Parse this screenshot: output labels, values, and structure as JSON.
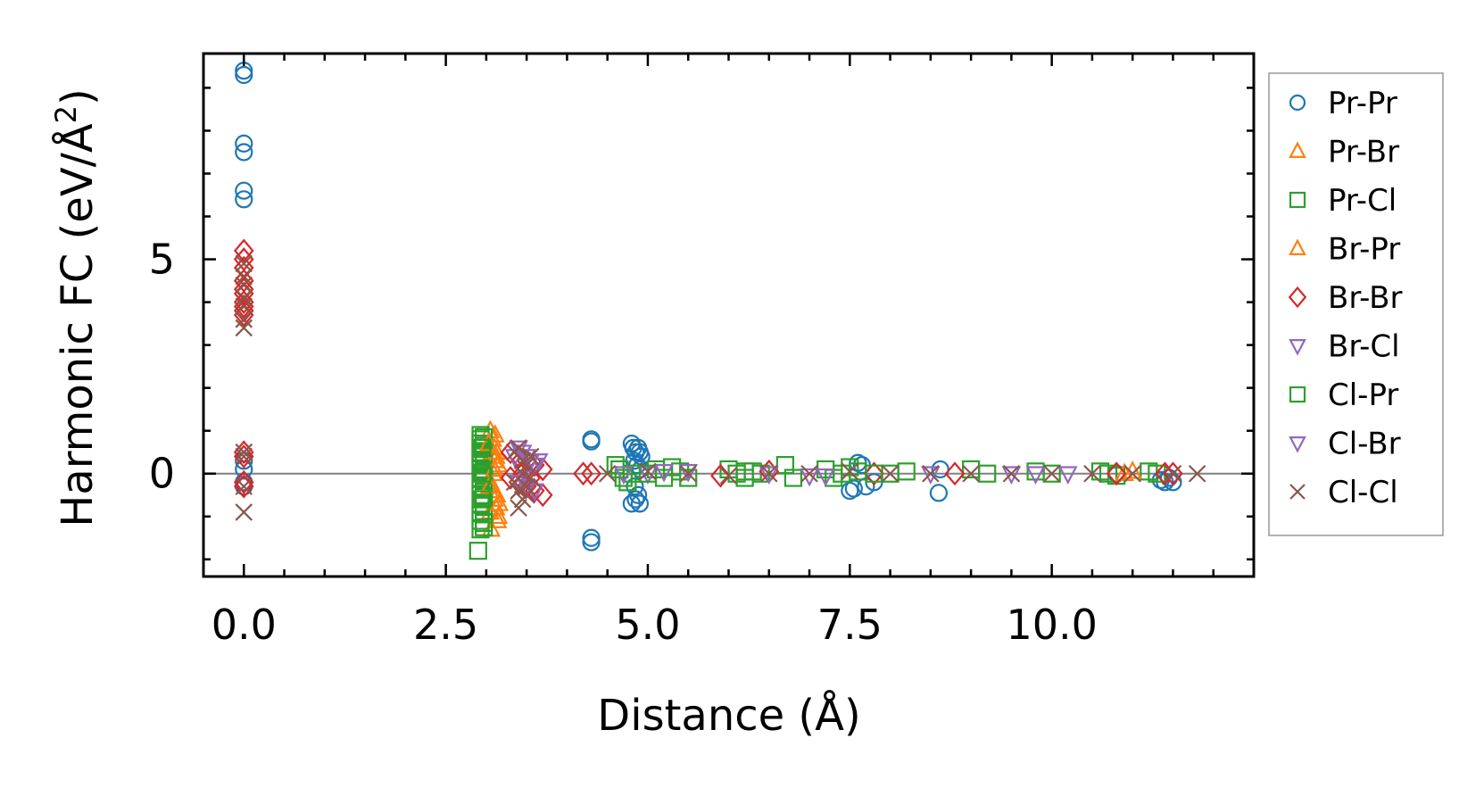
{
  "chart_data": {
    "type": "scatter",
    "xlabel": "Distance (Å)",
    "ylabel_main": "Harmonic FC (eV/Å",
    "ylabel_sup": "2",
    "ylabel_close": ")",
    "xlim": [
      -0.5,
      12.5
    ],
    "ylim": [
      -2.4,
      9.8
    ],
    "xticks": [
      0.0,
      2.5,
      5.0,
      7.5,
      10.0
    ],
    "xtick_labels": [
      "0.0",
      "2.5",
      "5.0",
      "7.5",
      "10.0"
    ],
    "yticks": [
      0,
      5
    ],
    "ytick_labels": [
      "0",
      "5"
    ],
    "x_minor_step": 0.5,
    "y_minor_step": 1,
    "zero_line": true,
    "grid": false,
    "legend_position": "outside-right",
    "series": [
      {
        "name": "Pr-Pr",
        "marker": "circle",
        "color": "#1f77b4",
        "x": [
          0,
          0,
          0,
          0,
          0,
          0,
          0,
          0,
          0,
          0,
          4.3,
          4.3,
          4.3,
          4.3,
          4.8,
          4.82,
          4.85,
          4.88,
          4.9,
          4.92,
          4.8,
          4.85,
          4.9,
          4.88,
          4.83,
          4.87,
          4.91,
          4.84,
          7.5,
          7.55,
          7.6,
          7.65,
          7.7,
          7.8,
          8.6,
          8.62,
          11.35,
          11.4,
          11.45,
          11.5,
          10.8
        ],
        "y": [
          9.4,
          9.3,
          7.7,
          7.5,
          6.6,
          6.4,
          0.3,
          0.1,
          -0.2,
          -0.3,
          0.8,
          0.75,
          -1.5,
          -1.6,
          0.7,
          0.6,
          0.5,
          0.6,
          0.5,
          0.4,
          -0.7,
          -0.6,
          -0.7,
          -0.5,
          0.3,
          0.2,
          0.1,
          -0.3,
          -0.4,
          -0.35,
          0.25,
          0.2,
          -0.3,
          -0.2,
          -0.45,
          0.1,
          -0.15,
          -0.2,
          -0.1,
          -0.2,
          0.0
        ]
      },
      {
        "name": "Pr-Br",
        "marker": "triangle",
        "color": "#ff7f0e",
        "x": [
          3.05,
          3.08,
          3.1,
          3.12,
          3.15,
          3.05,
          3.08,
          3.1,
          3.12,
          3.15,
          3.06,
          3.11,
          3.14,
          3.07,
          3.09,
          3.13,
          3.05,
          3.1
        ],
        "y": [
          1.0,
          0.8,
          0.6,
          0.4,
          0.2,
          -0.2,
          -0.4,
          -0.6,
          -0.8,
          -1.0,
          -1.3,
          0.9,
          -1.1,
          0.5,
          0.0,
          -0.5,
          -0.9,
          0.3
        ]
      },
      {
        "name": "Pr-Cl",
        "marker": "square",
        "color": "#2ca02c",
        "x": [
          2.93,
          2.93,
          2.93,
          2.93,
          2.93,
          2.93,
          2.93,
          2.93,
          2.93,
          2.93,
          2.93,
          2.93,
          2.93,
          2.93,
          2.93,
          2.93,
          2.97,
          2.97,
          2.97,
          2.97,
          2.97,
          2.97,
          2.97,
          2.97,
          2.97,
          2.97,
          2.97,
          2.97,
          2.97,
          2.97,
          2.9,
          4.6,
          4.65,
          4.7,
          4.75,
          4.8,
          5.1,
          5.2,
          5.3,
          5.4,
          5.5,
          6.0,
          6.1,
          6.2,
          6.3,
          6.4,
          6.7,
          6.8,
          7.2,
          7.3,
          7.4,
          7.5,
          7.6,
          8.0,
          8.2,
          9.0,
          9.2,
          9.8,
          10.0,
          10.6,
          10.7,
          10.8,
          11.2,
          11.3
        ],
        "y": [
          0.9,
          0.8,
          0.7,
          0.6,
          0.5,
          0.4,
          0.3,
          0.2,
          0.1,
          -0.1,
          -0.3,
          -0.5,
          -0.7,
          -0.9,
          -1.1,
          -1.3,
          0.85,
          0.65,
          0.45,
          0.25,
          0.05,
          -0.15,
          -0.35,
          -0.55,
          -0.75,
          -0.95,
          -1.15,
          -1.25,
          0.0,
          -0.05,
          -1.8,
          0.2,
          0.1,
          -0.1,
          -0.2,
          0.0,
          0.1,
          -0.1,
          0.15,
          0.05,
          -0.1,
          0.1,
          0.0,
          -0.1,
          0.05,
          0.0,
          0.2,
          -0.1,
          0.1,
          -0.1,
          0.0,
          0.15,
          0.05,
          0.0,
          0.05,
          0.1,
          0.0,
          0.05,
          0.0,
          0.05,
          0.0,
          -0.05,
          0.05,
          0.0
        ]
      },
      {
        "name": "Br-Pr",
        "marker": "triangle",
        "color": "#ff7f0e",
        "x": [
          3.03,
          3.1,
          3.16,
          3.04,
          3.13,
          10.9,
          11.0
        ],
        "y": [
          0.7,
          0.1,
          -0.7,
          -0.3,
          0.5,
          0.0,
          0.05
        ]
      },
      {
        "name": "Br-Br",
        "marker": "diamond",
        "color": "#d62728",
        "x": [
          0,
          0,
          0,
          0,
          0,
          0,
          0,
          0,
          0,
          0,
          0,
          0,
          0,
          0,
          3.3,
          3.4,
          3.5,
          3.6,
          3.7,
          3.3,
          3.4,
          3.5,
          3.6,
          3.7,
          3.45,
          3.55,
          4.2,
          4.3,
          5.9,
          6.5,
          7.8,
          8.8,
          10.8,
          11.4,
          11.5
        ],
        "y": [
          5.2,
          5.0,
          4.8,
          4.5,
          4.3,
          4.2,
          4.0,
          3.9,
          3.8,
          3.7,
          0.5,
          0.4,
          -0.2,
          -0.3,
          0.5,
          0.4,
          0.3,
          0.2,
          0.1,
          -0.1,
          -0.2,
          -0.3,
          -0.4,
          -0.5,
          0.0,
          -0.1,
          0.0,
          0.0,
          -0.05,
          0.05,
          0.0,
          0.0,
          0.0,
          0.0,
          0.0
        ]
      },
      {
        "name": "Br-Cl",
        "marker": "triangle-down",
        "color": "#9467bd",
        "x": [
          3.4,
          3.45,
          3.5,
          3.55,
          3.6,
          3.4,
          3.5,
          3.6,
          5.0,
          5.5,
          6.5,
          7.0,
          8.5,
          9.5,
          10.2
        ],
        "y": [
          0.6,
          0.5,
          0.4,
          0.3,
          0.2,
          -0.2,
          -0.3,
          -0.4,
          0.0,
          0.05,
          0.0,
          -0.05,
          0.0,
          0.0,
          0.0
        ]
      },
      {
        "name": "Cl-Pr",
        "marker": "square",
        "color": "#2ca02c",
        "x": [
          2.95,
          2.95,
          2.95,
          5.0,
          6.2,
          7.8
        ],
        "y": [
          0.6,
          -0.6,
          0.0,
          0.0,
          0.05,
          0.0
        ]
      },
      {
        "name": "Cl-Br",
        "marker": "triangle-down",
        "color": "#9467bd",
        "x": [
          3.35,
          3.5,
          3.65,
          4.7,
          5.2,
          7.2,
          9.8
        ],
        "y": [
          0.4,
          -0.1,
          0.3,
          0.0,
          0.05,
          -0.05,
          0.0
        ]
      },
      {
        "name": "Cl-Cl",
        "marker": "x",
        "color": "#8c564b",
        "x": [
          0,
          0,
          0,
          0,
          0,
          0,
          0,
          0,
          0,
          0,
          0,
          3.35,
          3.4,
          3.45,
          3.5,
          3.55,
          3.35,
          3.4,
          3.45,
          3.5,
          3.55,
          3.4,
          3.45,
          3.5,
          4.5,
          5.0,
          5.5,
          6.0,
          6.5,
          7.0,
          7.5,
          8.0,
          8.5,
          9.0,
          9.5,
          10.0,
          10.5,
          11.0,
          11.5,
          11.8
        ],
        "y": [
          4.9,
          4.6,
          4.4,
          4.1,
          3.9,
          3.6,
          3.4,
          0.5,
          0.4,
          -0.3,
          -0.9,
          0.5,
          0.6,
          0.3,
          0.2,
          0.4,
          -0.2,
          -0.4,
          -0.6,
          -0.3,
          -0.1,
          -0.8,
          0.0,
          -0.5,
          0.0,
          0.05,
          0.0,
          -0.05,
          0.0,
          0.0,
          0.05,
          0.0,
          0.0,
          0.0,
          0.0,
          0.0,
          0.0,
          0.0,
          0.0,
          0.0
        ]
      }
    ]
  }
}
